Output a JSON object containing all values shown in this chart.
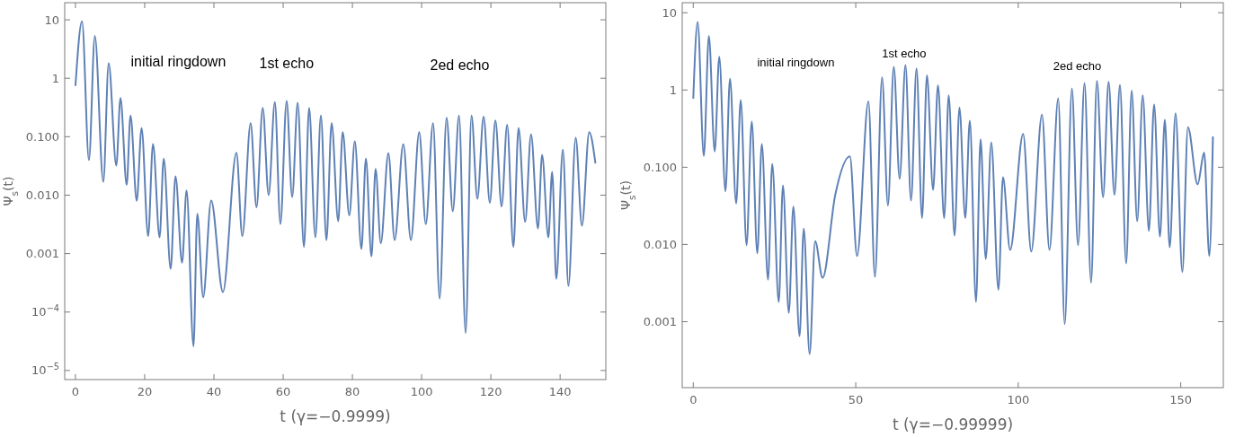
{
  "chart_data": [
    {
      "type": "line",
      "xlabel": "t  (γ=−0.9999)",
      "ylabel": "Ψ$_{s}$(t)",
      "log": "y",
      "color": "#5e81b5",
      "xlim": [
        -3.1,
        153.2
      ],
      "xticks": [
        0,
        20,
        40,
        60,
        80,
        100,
        120,
        140
      ],
      "ylim": [
        7e-06,
        19.6
      ],
      "yticks": [
        10,
        1,
        {
          "value": 0.1,
          "label": "0.100"
        },
        {
          "value": 0.01,
          "label": "0.010"
        },
        0.001,
        {
          "value": 0.0001,
          "label": "10$^{−4}$"
        },
        {
          "value": 1e-05,
          "label": "10$^{−5}$"
        }
      ],
      "annotations": [
        "initial ringdown",
        "1st echo",
        "2ed echo"
      ],
      "x": [
        0,
        1.9,
        3.9,
        5.6,
        8.05,
        9.6,
        11.8,
        13,
        14.8,
        15.9,
        17.7,
        19.1,
        21,
        22.4,
        24.3,
        25.5,
        27.5,
        28.9,
        30.8,
        32.1,
        34.1,
        35.2,
        36.9,
        39.2,
        42.6,
        46.5,
        48.2,
        50.6,
        52.3,
        54.1,
        55.8,
        57.6,
        59.2,
        61,
        62.6,
        64.2,
        66,
        67.5,
        69.3,
        70.9,
        72.5,
        74,
        75.9,
        77.2,
        79.1,
        80.7,
        82.6,
        83.9,
        85.5,
        86.7,
        88.2,
        90.4,
        92.2,
        94.7,
        96.9,
        99.3,
        101.2,
        103.3,
        105.2,
        107.2,
        109,
        110.8,
        112.7,
        114.4,
        116.1,
        117.9,
        119.7,
        121.3,
        123.1,
        124.7,
        126.5,
        128,
        129.9,
        131.6,
        133.6,
        134.8,
        136.6,
        137.7,
        138.9,
        140.8,
        142.4,
        144.5,
        146.3,
        148.4,
        150.2
      ],
      "values": [
        0.74,
        9.4,
        0.04,
        5.3,
        0.017,
        1.8,
        0.032,
        0.46,
        0.015,
        0.23,
        0.008,
        0.14,
        0.002,
        0.075,
        0.0019,
        0.042,
        0.00055,
        0.021,
        0.0007,
        0.012,
        2.6e-05,
        0.0048,
        0.00018,
        0.0081,
        0.00022,
        0.053,
        0.002,
        0.17,
        0.0062,
        0.31,
        0.01,
        0.39,
        0.0032,
        0.41,
        0.0093,
        0.38,
        0.0013,
        0.31,
        0.0019,
        0.23,
        0.0017,
        0.17,
        0.0036,
        0.12,
        0.0045,
        0.083,
        0.0012,
        0.042,
        0.0009,
        0.028,
        0.0015,
        0.052,
        0.0017,
        0.074,
        0.0017,
        0.12,
        0.0032,
        0.17,
        0.00017,
        0.21,
        0.0053,
        0.23,
        4.4e-05,
        0.23,
        0.0087,
        0.22,
        0.0074,
        0.19,
        0.0064,
        0.16,
        0.0013,
        0.14,
        0.0035,
        0.11,
        0.0027,
        0.049,
        0.0019,
        0.025,
        0.00037,
        0.06,
        0.00028,
        0.096,
        0.003,
        0.12,
        0.035
      ]
    },
    {
      "type": "line",
      "xlabel": "t  (γ=−0.99999)",
      "ylabel": "Ψ$_{s}$(t)",
      "log": "y",
      "color": "#5e81b5",
      "xlim": [
        -3.4,
        163.1
      ],
      "xticks": [
        0,
        50,
        100,
        150
      ],
      "ylim": [
        0.00014,
        13.5
      ],
      "yticks": [
        10,
        1,
        {
          "value": 0.1,
          "label": "0.100"
        },
        {
          "value": 0.01,
          "label": "0.010"
        },
        0.001
      ],
      "annotations": [
        "initial ringdown",
        "1st echo",
        "2ed echo"
      ],
      "x": [
        0,
        1.35,
        3.25,
        4.8,
        6.6,
        8,
        9.9,
        11.3,
        13.2,
        14.6,
        16.4,
        18,
        19.7,
        21.1,
        23,
        24.3,
        26.3,
        27.6,
        29.4,
        30.8,
        32.7,
        34,
        35.8,
        37.5,
        39.8,
        43.7,
        48.2,
        50.4,
        53.9,
        55.9,
        58.1,
        59.9,
        61.7,
        63.5,
        65.3,
        67,
        68.7,
        70.4,
        71.9,
        73.8,
        75.3,
        77.2,
        78.6,
        80.4,
        81.9,
        83.7,
        85.1,
        87,
        88.4,
        90,
        91.7,
        93.9,
        95.3,
        97.5,
        101.5,
        104,
        107.3,
        109.6,
        112.3,
        114.3,
        116.5,
        118.4,
        120.4,
        122.4,
        124.2,
        126.1,
        127.8,
        129.6,
        131.3,
        133.2,
        134.9,
        136.6,
        138.3,
        140.2,
        141.8,
        143.6,
        145.1,
        146.6,
        148.4,
        150.5,
        152.2,
        155.2,
        157.2,
        158.8,
        159.9
      ],
      "values": [
        0.77,
        7.6,
        0.14,
        5,
        0.16,
        2.7,
        0.049,
        1.4,
        0.034,
        0.74,
        0.0098,
        0.39,
        0.0077,
        0.2,
        0.0035,
        0.11,
        0.0018,
        0.058,
        0.0013,
        0.031,
        0.00065,
        0.016,
        0.00038,
        0.011,
        0.0037,
        0.044,
        0.138,
        0.0071,
        0.71,
        0.0038,
        1.46,
        0.032,
        2,
        0.071,
        2.1,
        0.037,
        1.9,
        0.022,
        1.55,
        0.051,
        1.15,
        0.022,
        0.85,
        0.013,
        0.59,
        0.022,
        0.4,
        0.0018,
        0.23,
        0.0065,
        0.21,
        0.0026,
        0.074,
        0.0085,
        0.27,
        0.0081,
        0.48,
        0.0085,
        0.78,
        0.00093,
        1.05,
        0.0098,
        1.23,
        0.0032,
        1.31,
        0.041,
        1.27,
        0.044,
        1.16,
        0.0057,
        0.98,
        0.02,
        0.85,
        0.015,
        0.65,
        0.0126,
        0.41,
        0.0092,
        0.5,
        0.0044,
        0.33,
        0.06,
        0.155,
        0.0071,
        0.25
      ]
    }
  ]
}
